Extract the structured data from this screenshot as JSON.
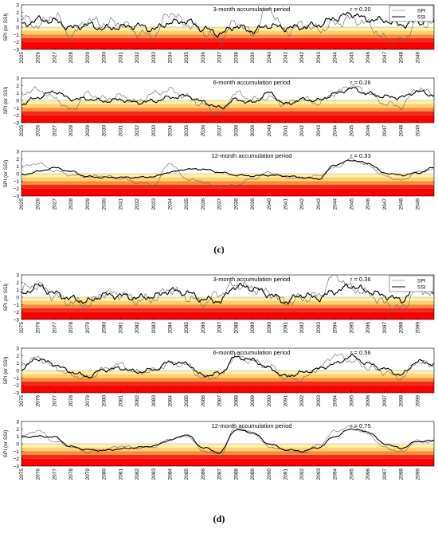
{
  "figure": {
    "panel_labels": [
      "(c)",
      "(d)"
    ]
  },
  "colors": {
    "band_1": "#fdf1a8",
    "band_2": "#fccf75",
    "band_3": "#f98b3a",
    "band_4": "#ee2c1e",
    "band_5": "#ff0000",
    "spi_line": "#666666",
    "ssi_line": "#000000",
    "axes": "#000000",
    "background": "#ffffff"
  },
  "chart_data": [
    {
      "type": "line",
      "panel": "(c)",
      "title": "3-month accumulation period",
      "ylabel": "SPI (or SSI)",
      "ylim": [
        -3,
        3
      ],
      "yticks": [
        3,
        2,
        1,
        0,
        -1,
        -2,
        -3
      ],
      "xlim": [
        2025,
        2050
      ],
      "xticks": [
        "2025",
        "2026",
        "2027",
        "2028",
        "2029",
        "2030",
        "2031",
        "2032",
        "2033",
        "2034",
        "2035",
        "2036",
        "2037",
        "2038",
        "2039",
        "2040",
        "2041",
        "2042",
        "2043",
        "2044",
        "2045",
        "2046",
        "2047",
        "2048",
        "2049"
      ],
      "annotation": "r = 0.20",
      "legend": {
        "position": "top-right",
        "entries": [
          "SPI",
          "SSI"
        ]
      },
      "drought_bands": [
        [
          0,
          -0.5
        ],
        [
          -0.5,
          -1.0
        ],
        [
          -1.0,
          -1.5
        ],
        [
          -1.5,
          -2.0
        ],
        [
          -2.0,
          -3.0
        ]
      ],
      "series": [
        {
          "name": "SPI",
          "x": [
            2025,
            2026,
            2027,
            2028,
            2029,
            2030,
            2031,
            2032,
            2033,
            2034,
            2035,
            2036,
            2037,
            2038,
            2039,
            2040,
            2041,
            2042,
            2043,
            2044,
            2045,
            2046,
            2047,
            2048,
            2049,
            2050
          ],
          "values": [
            1.3,
            0.2,
            1.6,
            -1.2,
            0.9,
            0.5,
            0.6,
            -0.7,
            -1.3,
            2.0,
            0.4,
            -0.6,
            -1.8,
            0.7,
            -0.9,
            2.5,
            -0.6,
            0.3,
            -0.4,
            0.5,
            1.1,
            0.4,
            -1.6,
            -2.0,
            0.7,
            0.4
          ]
        },
        {
          "name": "SSI",
          "x": [
            2025,
            2026,
            2027,
            2028,
            2029,
            2030,
            2031,
            2032,
            2033,
            2034,
            2035,
            2036,
            2037,
            2038,
            2039,
            2040,
            2041,
            2042,
            2043,
            2044,
            2045,
            2046,
            2047,
            2048,
            2049,
            2050
          ],
          "values": [
            0.2,
            1.0,
            0.8,
            -0.1,
            0.3,
            -0.2,
            0.0,
            0.2,
            -0.3,
            0.6,
            0.8,
            -0.2,
            -0.9,
            0.1,
            -0.5,
            0.2,
            -0.1,
            0.0,
            0.3,
            1.2,
            1.8,
            1.0,
            0.9,
            0.3,
            0.7,
            0.8
          ]
        }
      ]
    },
    {
      "type": "line",
      "panel": "(c)",
      "title": "6-month accumulation period",
      "ylabel": "SPI (or SSI)",
      "ylim": [
        -3,
        3
      ],
      "yticks": [
        3,
        2,
        1,
        0,
        -1,
        -2,
        -3
      ],
      "xlim": [
        2025,
        2050
      ],
      "xticks": [
        "2025",
        "2026",
        "2027",
        "2028",
        "2029",
        "2030",
        "2031",
        "2032",
        "2033",
        "2034",
        "2035",
        "2036",
        "2037",
        "2038",
        "2039",
        "2040",
        "2041",
        "2042",
        "2043",
        "2044",
        "2045",
        "2046",
        "2047",
        "2048",
        "2049"
      ],
      "annotation": "r = 0.26",
      "drought_bands": [
        [
          0,
          -0.5
        ],
        [
          -0.5,
          -1.0
        ],
        [
          -1.0,
          -1.5
        ],
        [
          -1.5,
          -2.0
        ],
        [
          -2.0,
          -3.0
        ]
      ],
      "series": [
        {
          "name": "SPI",
          "x": [
            2025,
            2026,
            2027,
            2028,
            2029,
            2030,
            2031,
            2032,
            2033,
            2034,
            2035,
            2036,
            2037,
            2038,
            2039,
            2040,
            2041,
            2042,
            2043,
            2044,
            2045,
            2046,
            2047,
            2048,
            2049,
            2050
          ],
          "values": [
            1.0,
            1.4,
            0.3,
            -1.3,
            0.9,
            0.2,
            0.6,
            -0.2,
            0.9,
            1.4,
            0.5,
            -0.6,
            -1.9,
            1.0,
            0.1,
            0.4,
            -0.5,
            0.2,
            -0.4,
            1.0,
            2.0,
            1.0,
            -0.4,
            -0.8,
            1.6,
            0.9
          ]
        },
        {
          "name": "SSI",
          "x": [
            2025,
            2026,
            2027,
            2028,
            2029,
            2030,
            2031,
            2032,
            2033,
            2034,
            2035,
            2036,
            2037,
            2038,
            2039,
            2040,
            2041,
            2042,
            2043,
            2044,
            2045,
            2046,
            2047,
            2048,
            2049,
            2050
          ],
          "values": [
            -0.5,
            0.4,
            1.2,
            0.2,
            0.2,
            -0.1,
            0.1,
            -0.3,
            -0.1,
            0.4,
            0.6,
            -0.2,
            -1.0,
            0.1,
            -0.3,
            1.0,
            -0.5,
            0.1,
            0.0,
            0.9,
            1.6,
            0.9,
            0.5,
            0.4,
            1.2,
            0.7
          ]
        }
      ]
    },
    {
      "type": "line",
      "panel": "(c)",
      "title": "12-month accumulation period",
      "ylabel": "SPI (or SSI)",
      "ylim": [
        -3,
        3
      ],
      "yticks": [
        3,
        2,
        1,
        0,
        -1,
        -2,
        -3
      ],
      "xlim": [
        2025,
        2050
      ],
      "xticks": [
        "2025",
        "2026",
        "2027",
        "2028",
        "2029",
        "2030",
        "2031",
        "2032",
        "2033",
        "2034",
        "2035",
        "2036",
        "2037",
        "2038",
        "2039",
        "2040",
        "2041",
        "2042",
        "2043",
        "2044",
        "2045",
        "2046",
        "2047",
        "2048",
        "2049"
      ],
      "annotation": "r = 0.33",
      "drought_bands": [
        [
          0,
          -0.5
        ],
        [
          -0.5,
          -1.0
        ],
        [
          -1.0,
          -1.5
        ],
        [
          -1.5,
          -2.0
        ],
        [
          -2.0,
          -3.0
        ]
      ],
      "series": [
        {
          "name": "SPI",
          "x": [
            2025,
            2026,
            2027,
            2028,
            2029,
            2030,
            2031,
            2032,
            2033,
            2034,
            2035,
            2036,
            2037,
            2038,
            2039,
            2040,
            2041,
            2042,
            2043,
            2044,
            2045,
            2046,
            2047,
            2048,
            2049,
            2050
          ],
          "values": [
            0.9,
            1.4,
            0.4,
            -0.2,
            -0.4,
            -0.3,
            -0.6,
            -1.2,
            -1.5,
            1.4,
            -0.7,
            -1.1,
            -2.0,
            -1.5,
            -0.7,
            0.2,
            -0.5,
            -0.6,
            -0.3,
            0.8,
            2.0,
            1.1,
            -0.3,
            -0.9,
            0.2,
            0.6
          ]
        },
        {
          "name": "SSI",
          "x": [
            2025,
            2026,
            2027,
            2028,
            2029,
            2030,
            2031,
            2032,
            2033,
            2034,
            2035,
            2036,
            2037,
            2038,
            2039,
            2040,
            2041,
            2042,
            2043,
            2044,
            2045,
            2046,
            2047,
            2048,
            2049,
            2050
          ],
          "values": [
            -0.2,
            0.3,
            0.8,
            0.3,
            -0.4,
            -0.5,
            -0.5,
            -0.5,
            -0.4,
            0.2,
            0.6,
            0.6,
            0.2,
            -0.2,
            -0.3,
            -0.2,
            -0.3,
            -0.5,
            -0.7,
            1.2,
            1.8,
            1.4,
            0.1,
            -0.2,
            0.1,
            0.8
          ]
        }
      ]
    },
    {
      "type": "line",
      "panel": "(d)",
      "title": "3-month accumulation period",
      "ylabel": "SPI (or SSI)",
      "ylim": [
        -3,
        3
      ],
      "yticks": [
        3,
        2,
        1,
        0,
        -1,
        -2,
        -3
      ],
      "xlim": [
        2075,
        2100
      ],
      "xticks": [
        "2075",
        "2076",
        "2077",
        "2078",
        "2079",
        "2080",
        "2081",
        "2082",
        "2083",
        "2084",
        "2085",
        "2086",
        "2087",
        "2088",
        "2089",
        "2090",
        "2091",
        "2092",
        "2093",
        "2094",
        "2095",
        "2096",
        "2097",
        "2098",
        "2099"
      ],
      "annotation": "r = 0.36",
      "legend": {
        "position": "top-right",
        "entries": [
          "SPI",
          "SSI"
        ]
      },
      "drought_bands": [
        [
          0,
          -0.5
        ],
        [
          -0.5,
          -1.0
        ],
        [
          -1.0,
          -1.5
        ],
        [
          -1.5,
          -2.0
        ],
        [
          -2.0,
          -3.0
        ]
      ],
      "series": [
        {
          "name": "SPI",
          "x": [
            2075,
            2076,
            2077,
            2078,
            2079,
            2080,
            2081,
            2082,
            2083,
            2084,
            2085,
            2086,
            2087,
            2088,
            2089,
            2090,
            2091,
            2092,
            2093,
            2094,
            2095,
            2096,
            2097,
            2098,
            2099,
            2100
          ],
          "values": [
            1.1,
            1.6,
            0.2,
            -0.7,
            -1.0,
            0.6,
            0.4,
            -0.4,
            -0.2,
            1.1,
            0.0,
            -0.8,
            0.5,
            1.7,
            1.2,
            0.6,
            -0.7,
            -0.2,
            0.2,
            3.0,
            1.2,
            0.5,
            -0.8,
            -1.6,
            1.1,
            0.5
          ]
        },
        {
          "name": "SSI",
          "x": [
            2075,
            2076,
            2077,
            2078,
            2079,
            2080,
            2081,
            2082,
            2083,
            2084,
            2085,
            2086,
            2087,
            2088,
            2089,
            2090,
            2091,
            2092,
            2093,
            2094,
            2095,
            2096,
            2097,
            2098,
            2099,
            2100
          ],
          "values": [
            0.4,
            1.5,
            0.5,
            -0.2,
            -0.6,
            0.3,
            0.2,
            -0.1,
            0.1,
            0.9,
            0.6,
            -0.3,
            -0.5,
            1.5,
            1.2,
            0.4,
            -0.6,
            0.3,
            -0.1,
            0.8,
            1.5,
            0.8,
            0.2,
            -0.4,
            1.3,
            0.7
          ]
        }
      ]
    },
    {
      "type": "line",
      "panel": "(d)",
      "title": "6-month accumulation period",
      "ylabel": "SPI (or SSI)",
      "ylim": [
        -3,
        3
      ],
      "yticks": [
        3,
        2,
        1,
        0,
        -1,
        -2,
        -3
      ],
      "xlim": [
        2075,
        2100
      ],
      "xticks": [
        "2075",
        "2076",
        "2077",
        "2078",
        "2079",
        "2080",
        "2081",
        "2082",
        "2083",
        "2084",
        "2085",
        "2086",
        "2087",
        "2088",
        "2089",
        "2090",
        "2091",
        "2092",
        "2093",
        "2094",
        "2095",
        "2096",
        "2097",
        "2098",
        "2099"
      ],
      "annotation": "r = 0.56",
      "drought_bands": [
        [
          0,
          -0.5
        ],
        [
          -0.5,
          -1.0
        ],
        [
          -1.0,
          -1.5
        ],
        [
          -1.5,
          -2.0
        ],
        [
          -2.0,
          -3.0
        ]
      ],
      "series": [
        {
          "name": "SPI",
          "x": [
            2075,
            2076,
            2077,
            2078,
            2079,
            2080,
            2081,
            2082,
            2083,
            2084,
            2085,
            2086,
            2087,
            2088,
            2089,
            2090,
            2091,
            2092,
            2093,
            2094,
            2095,
            2096,
            2097,
            2098,
            2099,
            2100
          ],
          "values": [
            0.8,
            1.7,
            0.4,
            -0.6,
            -1.1,
            0.2,
            0.8,
            -0.3,
            0.0,
            1.0,
            0.7,
            -1.0,
            -0.8,
            2.0,
            1.2,
            0.6,
            -1.0,
            -1.2,
            0.3,
            2.1,
            1.3,
            0.4,
            -0.2,
            -1.0,
            1.2,
            0.6
          ]
        },
        {
          "name": "SSI",
          "x": [
            2075,
            2076,
            2077,
            2078,
            2079,
            2080,
            2081,
            2082,
            2083,
            2084,
            2085,
            2086,
            2087,
            2088,
            2089,
            2090,
            2091,
            2092,
            2093,
            2094,
            2095,
            2096,
            2097,
            2098,
            2099,
            2100
          ],
          "values": [
            0.3,
            1.6,
            0.8,
            -0.2,
            -0.8,
            0.1,
            0.3,
            -0.2,
            0.1,
            1.1,
            0.9,
            -0.7,
            -0.4,
            1.8,
            1.4,
            0.3,
            -0.8,
            -0.3,
            0.2,
            0.9,
            1.9,
            0.9,
            0.2,
            -0.6,
            1.2,
            0.9
          ]
        }
      ]
    },
    {
      "type": "line",
      "panel": "(d)",
      "title": "12-month accumulation period",
      "ylabel": "SPI (or SSI)",
      "ylim": [
        -3,
        3
      ],
      "yticks": [
        3,
        2,
        1,
        0,
        -1,
        -2,
        -3
      ],
      "xlim": [
        2075,
        2100
      ],
      "xticks": [
        "2075",
        "2076",
        "2077",
        "2078",
        "2079",
        "2080",
        "2081",
        "2082",
        "2083",
        "2084",
        "2085",
        "2086",
        "2087",
        "2088",
        "2089",
        "2090",
        "2091",
        "2092",
        "2093",
        "2094",
        "2095",
        "2096",
        "2097",
        "2098",
        "2099"
      ],
      "annotation": "r = 0.75",
      "drought_bands": [
        [
          0,
          -0.5
        ],
        [
          -0.5,
          -1.0
        ],
        [
          -1.0,
          -1.5
        ],
        [
          -1.5,
          -2.0
        ],
        [
          -2.0,
          -3.0
        ]
      ],
      "series": [
        {
          "name": "SPI",
          "x": [
            2075,
            2076,
            2077,
            2078,
            2079,
            2080,
            2081,
            2082,
            2083,
            2084,
            2085,
            2086,
            2087,
            2088,
            2089,
            2090,
            2091,
            2092,
            2093,
            2094,
            2095,
            2096,
            2097,
            2098,
            2099,
            2100
          ],
          "values": [
            1.0,
            1.8,
            0.3,
            -0.4,
            -1.1,
            -0.8,
            -0.3,
            -0.6,
            -0.4,
            0.6,
            1.1,
            -0.9,
            -1.6,
            2.2,
            1.5,
            -0.4,
            -0.9,
            -1.2,
            -0.2,
            1.7,
            2.3,
            1.3,
            -0.5,
            -1.1,
            0.4,
            0.2
          ]
        },
        {
          "name": "SSI",
          "x": [
            2075,
            2076,
            2077,
            2078,
            2079,
            2080,
            2081,
            2082,
            2083,
            2084,
            2085,
            2086,
            2087,
            2088,
            2089,
            2090,
            2091,
            2092,
            2093,
            2094,
            2095,
            2096,
            2097,
            2098,
            2099,
            2100
          ],
          "values": [
            0.9,
            1.0,
            0.9,
            -0.4,
            -0.8,
            -0.9,
            -0.7,
            -0.5,
            -0.3,
            0.5,
            1.2,
            -0.5,
            -1.2,
            1.9,
            1.5,
            0.0,
            -0.8,
            -1.0,
            -0.5,
            1.0,
            2.0,
            1.6,
            0.0,
            -0.6,
            0.3,
            0.4
          ]
        }
      ]
    }
  ]
}
